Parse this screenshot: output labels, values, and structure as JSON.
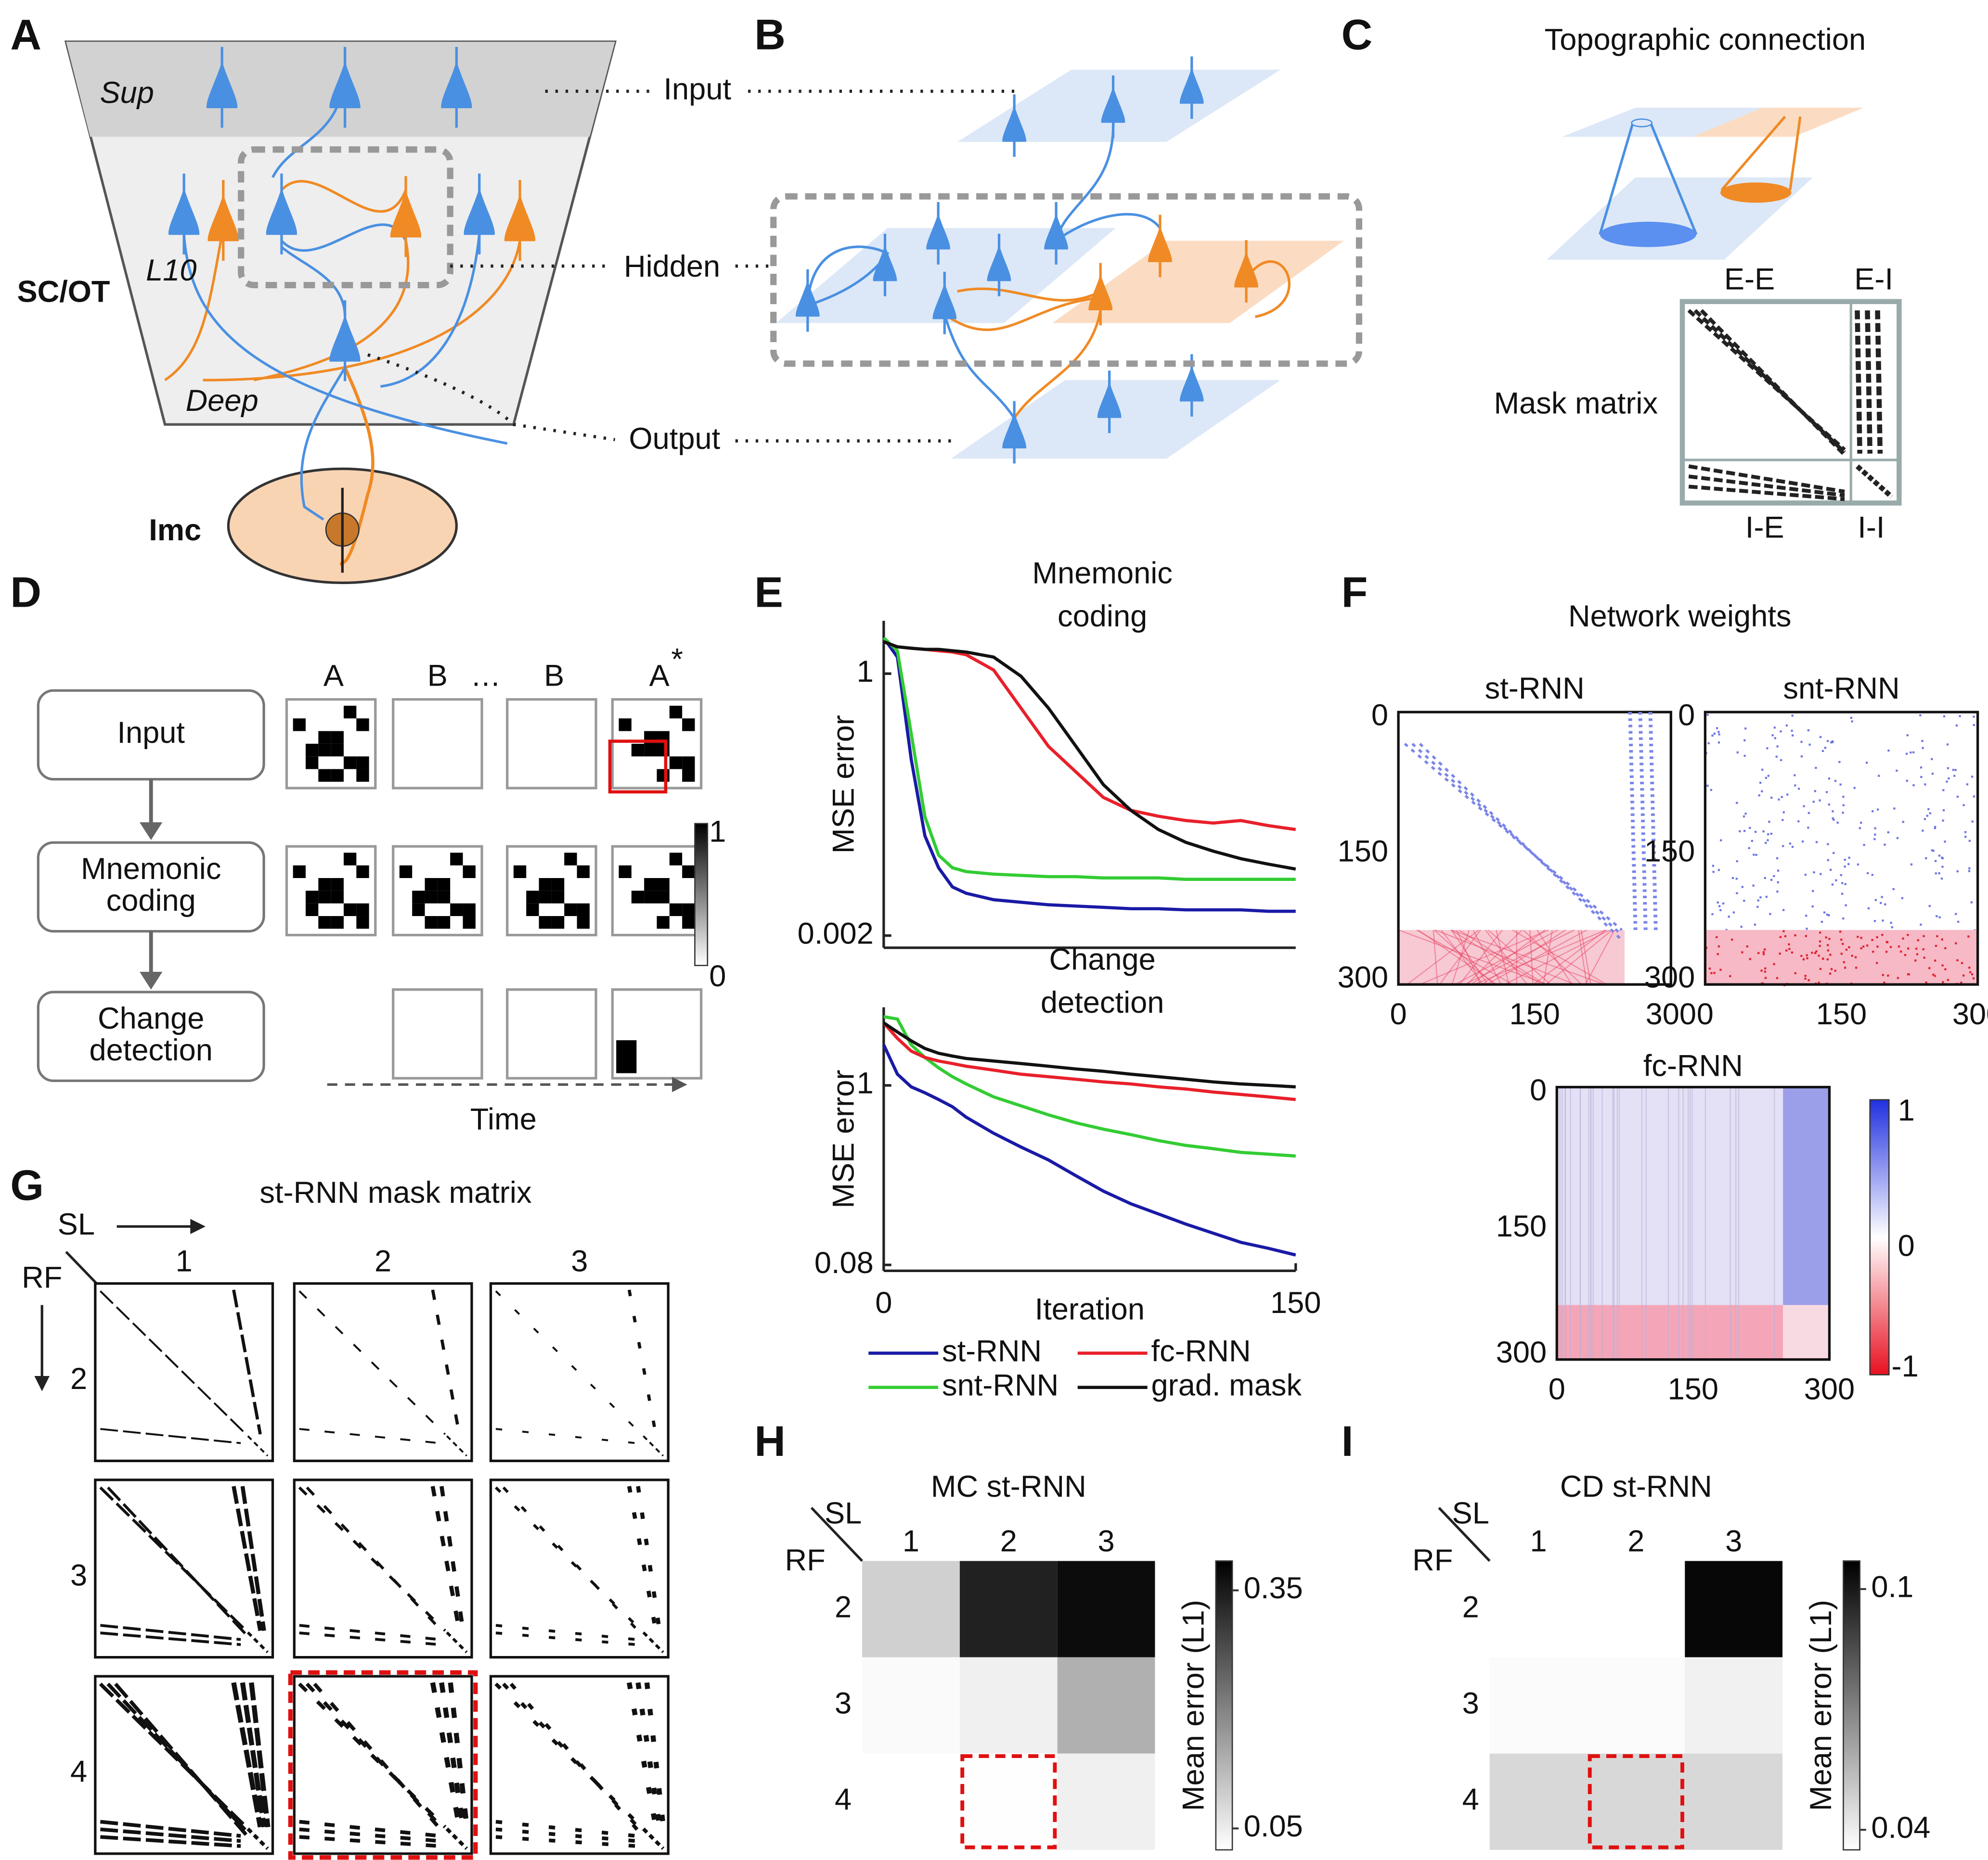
{
  "panels": {
    "A": {
      "letter": "A",
      "sup": "Sup",
      "l10": "L10",
      "deep": "Deep",
      "region": "SC/OT",
      "imc": "Imc"
    },
    "B": {
      "letter": "B",
      "layers": [
        "Input",
        "Hidden",
        "Output"
      ]
    },
    "C": {
      "letter": "C",
      "title": "Topographic connection",
      "mask_label": "Mask matrix",
      "blocks": [
        "E-E",
        "E-I",
        "I-E",
        "I-I"
      ]
    },
    "D": {
      "letter": "D",
      "steps": [
        [
          "Input"
        ],
        [
          "Mnemonic",
          "coding"
        ],
        [
          "Change",
          "detection"
        ]
      ],
      "frames": [
        "A",
        "B",
        "…",
        "B",
        "A"
      ],
      "frame_mark": "*",
      "colorbar": [
        "1",
        "0"
      ],
      "time": "Time"
    },
    "E": {
      "letter": "E"
    },
    "F": {
      "letter": "F",
      "title": "Network weights",
      "plots": [
        "st-RNN",
        "snt-RNN",
        "fc-RNN"
      ],
      "ticks": [
        "0",
        "150",
        "300"
      ],
      "colorbar": [
        "1",
        "0",
        "-1"
      ]
    },
    "G": {
      "letter": "G",
      "title": "st-RNN mask matrix",
      "col_axis": "SL",
      "row_axis": "RF",
      "cols": [
        "1",
        "2",
        "3"
      ],
      "rows": [
        "2",
        "3",
        "4"
      ]
    },
    "H": {
      "letter": "H"
    },
    "I": {
      "letter": "I"
    }
  },
  "chart_data": [
    {
      "type": "line",
      "title": [
        "Mnemonic",
        "coding"
      ],
      "y_label": "MSE error",
      "log_y": true,
      "x": [
        0,
        5,
        10,
        15,
        20,
        25,
        30,
        40,
        50,
        60,
        70,
        80,
        90,
        100,
        110,
        120,
        130,
        140,
        150
      ],
      "xlim": [
        0,
        150
      ],
      "ylim": [
        0.0015,
        3.5
      ],
      "yticks": [
        0.002,
        1
      ],
      "series": [
        {
          "color": "#1a1aa6",
          "values": [
            2.34,
            1.48,
            0.131,
            0.0213,
            0.01,
            0.00635,
            0.00546,
            0.00469,
            0.00441,
            0.00415,
            0.00403,
            0.00391,
            0.00379,
            0.00379,
            0.00368,
            0.00368,
            0.00368,
            0.00357,
            0.00357
          ]
        },
        {
          "color": "#33cc33",
          "values": [
            2.34,
            1.72,
            0.241,
            0.0336,
            0.0135,
            0.01,
            0.00914,
            0.0086,
            0.00834,
            0.0081,
            0.0081,
            0.00785,
            0.00785,
            0.00785,
            0.0076,
            0.0076,
            0.0076,
            0.0076,
            0.0076
          ]
        },
        {
          "color": "#e8202a",
          "values": [
            2.13,
            1.89,
            1.83,
            1.78,
            1.72,
            1.67,
            1.57,
            1.09,
            0.441,
            0.178,
            0.097,
            0.053,
            0.039,
            0.034,
            0.0307,
            0.0289,
            0.0307,
            0.0272,
            0.0248
          ]
        },
        {
          "color": "#111111",
          "values": [
            2.13,
            1.89,
            1.83,
            1.78,
            1.78,
            1.72,
            1.67,
            1.48,
            0.94,
            0.441,
            0.178,
            0.0717,
            0.039,
            0.0248,
            0.0183,
            0.0148,
            0.0124,
            0.0109,
            0.0097
          ]
        }
      ]
    },
    {
      "type": "line",
      "title": [
        "Change",
        "detection"
      ],
      "y_label": "MSE error",
      "x_label": "Iteration",
      "log_y": true,
      "legend": "below",
      "x": [
        0,
        5,
        10,
        15,
        20,
        25,
        30,
        40,
        50,
        60,
        70,
        80,
        90,
        100,
        110,
        120,
        130,
        140,
        150
      ],
      "xlim": [
        0,
        150
      ],
      "xticks": [
        0,
        150
      ],
      "ylim": [
        0.0736,
        3.0
      ],
      "yticks": [
        0.08,
        1
      ],
      "series": [
        {
          "name": "st-RNN",
          "color": "#1a1aa6",
          "values": [
            1.77,
            1.17,
            0.98,
            0.9,
            0.82,
            0.74,
            0.64,
            0.51,
            0.42,
            0.35,
            0.28,
            0.226,
            0.189,
            0.164,
            0.142,
            0.125,
            0.11,
            0.101,
            0.092
          ]
        },
        {
          "name": "snt-RNN",
          "color": "#33cc33",
          "values": [
            2.63,
            2.54,
            1.77,
            1.48,
            1.28,
            1.13,
            1.02,
            0.85,
            0.75,
            0.66,
            0.59,
            0.54,
            0.5,
            0.46,
            0.43,
            0.41,
            0.39,
            0.38,
            0.37
          ]
        },
        {
          "name": "fc-RNN",
          "color": "#e8202a",
          "values": [
            2.41,
            1.94,
            1.62,
            1.48,
            1.41,
            1.36,
            1.31,
            1.24,
            1.17,
            1.13,
            1.09,
            1.05,
            1.02,
            0.98,
            0.95,
            0.91,
            0.88,
            0.85,
            0.82
          ]
        },
        {
          "name": "grad. mask",
          "color": "#111111",
          "values": [
            2.41,
            2.12,
            1.87,
            1.68,
            1.57,
            1.51,
            1.46,
            1.41,
            1.36,
            1.31,
            1.26,
            1.22,
            1.17,
            1.13,
            1.09,
            1.05,
            1.02,
            1.0,
            0.98
          ]
        }
      ]
    },
    {
      "type": "heatmap",
      "title": "MC st-RNN",
      "x_label": "SL",
      "y_label": "RF",
      "x_categories": [
        "1",
        "2",
        "3"
      ],
      "y_categories": [
        "2",
        "3",
        "4"
      ],
      "values": [
        [
          0.09,
          0.34,
          0.37
        ],
        [
          0.03,
          0.045,
          0.136
        ],
        [
          0.023,
          0.025,
          0.045
        ]
      ],
      "zlim": [
        0.023,
        0.387
      ],
      "zticks": [
        0.35,
        0.05
      ],
      "colorbar_label": "Mean error (L1)",
      "highlight": [
        2,
        1
      ]
    },
    {
      "type": "heatmap",
      "title": "CD st-RNN",
      "x_label": "SL",
      "y_label": "RF",
      "x_categories": [
        "1",
        "2",
        "3"
      ],
      "y_categories": [
        "2",
        "3",
        "4"
      ],
      "values": [
        [
          0.035,
          0.035,
          0.105
        ],
        [
          0.036,
          0.036,
          0.039
        ],
        [
          0.046,
          0.046,
          0.046
        ]
      ],
      "zlim": [
        0.035,
        0.107
      ],
      "zticks": [
        0.1,
        0.04
      ],
      "colorbar_label": "Mean error (L1)",
      "highlight": [
        2,
        1
      ]
    }
  ]
}
